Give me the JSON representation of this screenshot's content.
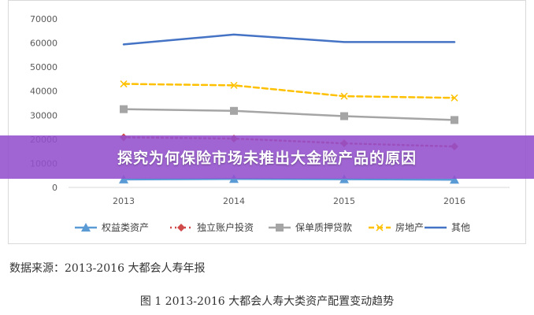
{
  "banner": {
    "title": "探究为何保险市场未推出大金险产品的原因"
  },
  "source_note": "数据来源：2013-2016 大都会人寿年报",
  "figure_caption": "图 1    2013-2016 大都会人寿大类资产配置变动趋势",
  "colors": {
    "equity": "#5b9bd5",
    "separate_account": "#d04a4a",
    "mortgage_loan": "#a5a5a5",
    "real_estate": "#ffc000",
    "other": "#4472c4"
  },
  "chart_data": {
    "type": "line",
    "x": [
      "2013",
      "2014",
      "2015",
      "2016"
    ],
    "ylim": [
      0,
      70000
    ],
    "yticks": [
      0,
      10000,
      20000,
      30000,
      40000,
      50000,
      60000,
      70000
    ],
    "ytick_labels": [
      "0",
      "10000",
      "20000",
      "30000",
      "40000",
      "50000",
      "60000",
      "70000"
    ],
    "grid": false,
    "legend_position": "bottom",
    "series": [
      {
        "name": "权益类资产",
        "values": [
          3300,
          3500,
          3400,
          3200
        ],
        "color": "#5b9bd5",
        "marker": "triangle",
        "dash": "solid"
      },
      {
        "name": "独立账户投资",
        "values": [
          20800,
          20300,
          18300,
          17000
        ],
        "color": "#d04a4a",
        "marker": "diamond",
        "dash": "dotted"
      },
      {
        "name": "保单质押贷款",
        "values": [
          32500,
          31800,
          29600,
          28000
        ],
        "color": "#a5a5a5",
        "marker": "square",
        "dash": "solid"
      },
      {
        "name": "房地产",
        "values": [
          43000,
          42400,
          37900,
          37200
        ],
        "color": "#ffc000",
        "marker": "x",
        "dash": "dashed"
      },
      {
        "name": "其他",
        "values": [
          59400,
          63500,
          60400,
          60400
        ],
        "color": "#4472c4",
        "marker": "none",
        "dash": "solid"
      }
    ]
  }
}
